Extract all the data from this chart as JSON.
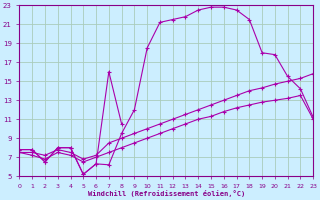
{
  "bg_color": "#cceeff",
  "grid_color": "#aaccbb",
  "line_color": "#aa00aa",
  "marker": "+",
  "xlabel": "Windchill (Refroidissement éolien,°C)",
  "xlabel_color": "#880088",
  "tick_color": "#880088",
  "xlim": [
    0,
    23
  ],
  "ylim": [
    5,
    23
  ],
  "yticks": [
    5,
    7,
    9,
    11,
    13,
    15,
    17,
    19,
    21,
    23
  ],
  "xticks": [
    0,
    1,
    2,
    3,
    4,
    5,
    6,
    7,
    8,
    9,
    10,
    11,
    12,
    13,
    14,
    15,
    16,
    17,
    18,
    19,
    20,
    21,
    22,
    23
  ],
  "curve1_x": [
    0,
    1,
    2,
    3,
    4,
    5,
    6,
    7,
    8,
    9,
    10,
    11,
    12,
    13,
    14,
    15,
    16,
    17,
    18,
    19,
    20,
    21,
    22,
    23
  ],
  "curve1_y": [
    7.8,
    7.8,
    6.5,
    8.0,
    8.0,
    5.2,
    6.3,
    6.2,
    9.5,
    12.0,
    18.5,
    21.2,
    21.5,
    21.8,
    22.5,
    22.8,
    22.8,
    22.5,
    21.5,
    18.0,
    17.8,
    15.5,
    14.2,
    11.2
  ],
  "curve2_x": [
    0,
    1,
    2,
    3,
    4,
    5,
    6,
    7,
    8
  ],
  "curve2_y": [
    7.8,
    7.8,
    6.5,
    8.0,
    8.0,
    5.2,
    6.3,
    16.0,
    10.5
  ],
  "curve3_x": [
    0,
    1,
    2,
    3,
    4,
    5,
    6,
    7,
    8,
    9,
    10,
    11,
    12,
    13,
    14,
    15,
    16,
    17,
    18,
    19,
    20,
    21,
    22,
    23
  ],
  "curve3_y": [
    7.5,
    7.5,
    7.2,
    7.8,
    7.5,
    6.8,
    7.2,
    8.5,
    9.0,
    9.5,
    10.0,
    10.5,
    11.0,
    11.5,
    12.0,
    12.5,
    13.0,
    13.5,
    14.0,
    14.3,
    14.7,
    15.0,
    15.3,
    15.8
  ],
  "curve4_x": [
    0,
    1,
    2,
    3,
    4,
    5,
    6,
    7,
    8,
    9,
    10,
    11,
    12,
    13,
    14,
    15,
    16,
    17,
    18,
    19,
    20,
    21,
    22,
    23
  ],
  "curve4_y": [
    7.5,
    7.2,
    6.8,
    7.5,
    7.2,
    6.5,
    7.0,
    7.5,
    8.0,
    8.5,
    9.0,
    9.5,
    10.0,
    10.5,
    11.0,
    11.3,
    11.8,
    12.2,
    12.5,
    12.8,
    13.0,
    13.2,
    13.5,
    11.0
  ]
}
